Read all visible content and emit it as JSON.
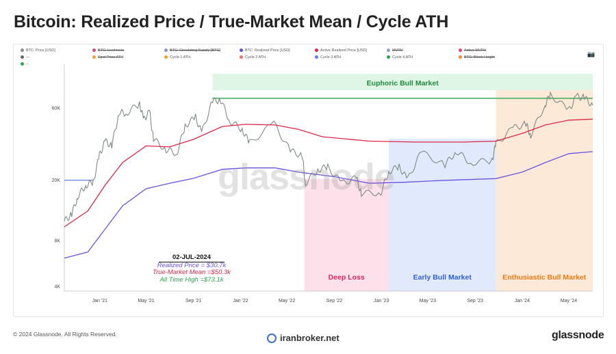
{
  "title": "Bitcoin: Realized Price / True-Market Mean / Cycle ATH",
  "legend": [
    {
      "label": "BTC: Price [USD]",
      "color": "#8a8a8a",
      "strike": false
    },
    {
      "label": "BTC: Liveliness",
      "color": "#e0457b",
      "strike": true
    },
    {
      "label": "BTC: Circulating Supply [BTC]",
      "color": "#8f8fd8",
      "strike": true
    },
    {
      "label": "BTC: Realized Price [USD]",
      "color": "#5b4fd8",
      "strike": false
    },
    {
      "label": "Active Realized Price [USD]",
      "color": "#e0243d",
      "strike": false
    },
    {
      "label": "MVRV",
      "color": "#9aa0d0",
      "strike": true
    },
    {
      "label": "Active MVRV",
      "color": "#e0457b",
      "strike": true
    },
    {
      "label": "—",
      "color": "#666666",
      "strike": false
    },
    {
      "label": "Spot Price ATH",
      "color": "#f0a030",
      "strike": true
    },
    {
      "label": "Cycle 1 ATH",
      "color": "#f59c1a",
      "strike": false
    },
    {
      "label": "Cycle 2 ATH",
      "color": "#f06f6f",
      "strike": false
    },
    {
      "label": "Cycle 3 ATH",
      "color": "#5b7ee8",
      "strike": false
    },
    {
      "label": "Cycle 4 ATH",
      "color": "#2aa64a",
      "strike": false
    },
    {
      "label": "BTC: Block Height",
      "color": "#f08a30",
      "strike": true
    },
    {
      "label": "--",
      "color": "#2aa64a",
      "strike": false
    }
  ],
  "watermark": "glassnode",
  "annotation": {
    "date": "02-JUL-2024",
    "realized": "Realized Price = $30.7k",
    "tmm": "True-Market Mean =$50.3k",
    "ath": "All Time High =$73.1k"
  },
  "footer": {
    "copyright": "© 2024 Glassnode. All Rights Reserved.",
    "site": "iranbroker.net",
    "brand": "glassnode"
  },
  "colors": {
    "price": "#7d8a84",
    "realized": "#6a52e0",
    "active_realized": "#e02446",
    "ath_line": "#2aa64a",
    "deep_loss": "#fde1ea",
    "early_bull": "#e1eafd",
    "enthusiastic": "#fde9d8",
    "euphoric": "#dff5e6"
  },
  "chart_data": {
    "type": "line",
    "y_scale": "log",
    "y_ticks": [
      {
        "label": "4K",
        "value": 4000
      },
      {
        "label": "8K",
        "value": 8000
      },
      {
        "label": "20K",
        "value": 20000
      },
      {
        "label": "60K",
        "value": 60000
      }
    ],
    "x_ticks": [
      {
        "label": "Jan '21",
        "date": "2021-01-01"
      },
      {
        "label": "May '21",
        "date": "2021-05-01"
      },
      {
        "label": "Sep '21",
        "date": "2021-09-01"
      },
      {
        "label": "Jan '22",
        "date": "2022-01-01"
      },
      {
        "label": "May '22",
        "date": "2022-05-01"
      },
      {
        "label": "Sep '22",
        "date": "2022-09-01"
      },
      {
        "label": "Jan '23",
        "date": "2023-01-01"
      },
      {
        "label": "May '23",
        "date": "2023-05-01"
      },
      {
        "label": "Sep '23",
        "date": "2023-09-01"
      },
      {
        "label": "Jan '24",
        "date": "2024-01-01"
      },
      {
        "label": "May '24",
        "date": "2024-05-01"
      }
    ],
    "x_range": [
      "2020-10-01",
      "2024-07-02"
    ],
    "y_range": [
      3700,
      100000
    ],
    "regions": [
      {
        "label": "Deep Loss",
        "start": "2022-06-15",
        "end": "2023-01-20",
        "color": "#fde1ea",
        "text_color": "#e0245e"
      },
      {
        "label": "Early Bull Market",
        "start": "2023-01-20",
        "end": "2023-10-25",
        "color": "#e1eafd",
        "text_color": "#2f5fd8"
      },
      {
        "label": "Enthusiastic Bull Market",
        "start": "2023-10-25",
        "end": "2024-07-02",
        "color": "#fde9d8",
        "text_color": "#f07a10"
      }
    ],
    "euphoric": {
      "label": "Euphoric Bull Market",
      "start": "2021-10-20",
      "end": "2024-07-02",
      "text_color": "#1f8a3a"
    },
    "ath_level": 69000,
    "cycle3_ath": {
      "start": "2020-10-01",
      "end": "2020-12-15",
      "value": 19900
    },
    "series": [
      {
        "name": "BTC: Price [USD]",
        "points": [
          [
            "2020-10-01",
            10700
          ],
          [
            "2020-10-20",
            11900
          ],
          [
            "2020-11-05",
            15600
          ],
          [
            "2020-11-25",
            18400
          ],
          [
            "2020-12-15",
            19400
          ],
          [
            "2020-12-31",
            29000
          ],
          [
            "2021-01-15",
            36000
          ],
          [
            "2021-02-01",
            33500
          ],
          [
            "2021-02-20",
            56000
          ],
          [
            "2021-03-10",
            55000
          ],
          [
            "2021-04-14",
            63500
          ],
          [
            "2021-04-25",
            50000
          ],
          [
            "2021-05-10",
            56500
          ],
          [
            "2021-05-20",
            37000
          ],
          [
            "2021-06-22",
            31700
          ],
          [
            "2021-07-20",
            30000
          ],
          [
            "2021-08-10",
            45500
          ],
          [
            "2021-09-06",
            51800
          ],
          [
            "2021-09-22",
            40700
          ],
          [
            "2021-10-20",
            66000
          ],
          [
            "2021-11-10",
            67500
          ],
          [
            "2021-12-04",
            49000
          ],
          [
            "2022-01-05",
            43000
          ],
          [
            "2022-01-24",
            35000
          ],
          [
            "2022-03-28",
            47300
          ],
          [
            "2022-05-10",
            31000
          ],
          [
            "2022-06-10",
            29000
          ],
          [
            "2022-06-18",
            19000
          ],
          [
            "2022-07-20",
            23400
          ],
          [
            "2022-08-15",
            24300
          ],
          [
            "2022-09-20",
            19000
          ],
          [
            "2022-10-28",
            20600
          ],
          [
            "2022-11-10",
            16300
          ],
          [
            "2022-12-31",
            16550
          ],
          [
            "2023-01-20",
            22700
          ],
          [
            "2023-02-16",
            24500
          ],
          [
            "2023-03-10",
            20100
          ],
          [
            "2023-04-14",
            30400
          ],
          [
            "2023-06-15",
            25100
          ],
          [
            "2023-07-14",
            31000
          ],
          [
            "2023-08-20",
            26000
          ],
          [
            "2023-10-15",
            26800
          ],
          [
            "2023-10-25",
            34500
          ],
          [
            "2023-12-08",
            43800
          ],
          [
            "2024-01-11",
            46800
          ],
          [
            "2024-01-23",
            39500
          ],
          [
            "2024-02-29",
            62500
          ],
          [
            "2024-03-14",
            73100
          ],
          [
            "2024-05-01",
            57500
          ],
          [
            "2024-05-21",
            71000
          ],
          [
            "2024-06-10",
            69600
          ],
          [
            "2024-07-02",
            62100
          ]
        ]
      },
      {
        "name": "Active Realized Price [USD]",
        "points": [
          [
            "2020-10-01",
            9800
          ],
          [
            "2020-12-01",
            12500
          ],
          [
            "2021-01-15",
            18500
          ],
          [
            "2021-03-01",
            26000
          ],
          [
            "2021-05-01",
            33500
          ],
          [
            "2021-07-01",
            33000
          ],
          [
            "2021-09-01",
            37000
          ],
          [
            "2021-11-15",
            45000
          ],
          [
            "2022-01-15",
            46500
          ],
          [
            "2022-04-01",
            46000
          ],
          [
            "2022-06-01",
            43000
          ],
          [
            "2022-08-01",
            38500
          ],
          [
            "2022-12-01",
            36000
          ],
          [
            "2023-04-01",
            35500
          ],
          [
            "2023-08-01",
            35500
          ],
          [
            "2023-10-25",
            36000
          ],
          [
            "2024-01-01",
            40500
          ],
          [
            "2024-03-01",
            46000
          ],
          [
            "2024-05-01",
            49500
          ],
          [
            "2024-07-02",
            50300
          ]
        ]
      },
      {
        "name": "BTC: Realized Price [USD]",
        "points": [
          [
            "2020-10-01",
            6100
          ],
          [
            "2020-12-01",
            6700
          ],
          [
            "2021-01-15",
            9500
          ],
          [
            "2021-03-01",
            13500
          ],
          [
            "2021-05-01",
            17500
          ],
          [
            "2021-07-01",
            19000
          ],
          [
            "2021-09-01",
            20500
          ],
          [
            "2021-11-15",
            23500
          ],
          [
            "2022-01-15",
            24000
          ],
          [
            "2022-04-01",
            24000
          ],
          [
            "2022-06-01",
            22500
          ],
          [
            "2022-09-01",
            21000
          ],
          [
            "2022-12-01",
            19000
          ],
          [
            "2023-03-01",
            19300
          ],
          [
            "2023-06-01",
            19800
          ],
          [
            "2023-10-25",
            20400
          ],
          [
            "2024-01-01",
            22500
          ],
          [
            "2024-03-01",
            26000
          ],
          [
            "2024-05-01",
            29800
          ],
          [
            "2024-07-02",
            30700
          ]
        ]
      }
    ]
  }
}
